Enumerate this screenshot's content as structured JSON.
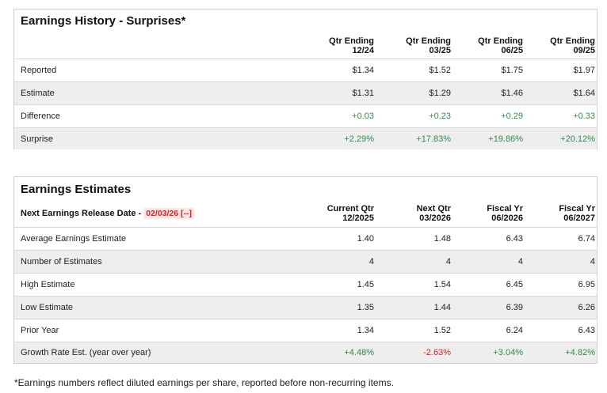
{
  "surprises": {
    "title": "Earnings History - Surprises*",
    "columns": [
      {
        "line1": "Qtr Ending",
        "line2": "12/24"
      },
      {
        "line1": "Qtr Ending",
        "line2": "03/25"
      },
      {
        "line1": "Qtr Ending",
        "line2": "06/25"
      },
      {
        "line1": "Qtr Ending",
        "line2": "09/25"
      }
    ],
    "rows": [
      {
        "label": "Reported",
        "values": [
          "$1.34",
          "$1.52",
          "$1.75",
          "$1.97"
        ],
        "tone": "neutral"
      },
      {
        "label": "Estimate",
        "values": [
          "$1.31",
          "$1.29",
          "$1.46",
          "$1.64"
        ],
        "tone": "neutral"
      },
      {
        "label": "Difference",
        "values": [
          "+0.03",
          "+0.23",
          "+0.29",
          "+0.33"
        ],
        "tone": "positive"
      },
      {
        "label": "Surprise",
        "values": [
          "+2.29%",
          "+17.83%",
          "+19.86%",
          "+20.12%"
        ],
        "tone": "positive"
      }
    ]
  },
  "estimates": {
    "title": "Earnings Estimates",
    "release_label": "Next Earnings Release Date -",
    "release_date": "02/03/26 [--]",
    "columns": [
      {
        "line1": "Current Qtr",
        "line2": "12/2025"
      },
      {
        "line1": "Next Qtr",
        "line2": "03/2026"
      },
      {
        "line1": "Fiscal Yr",
        "line2": "06/2026"
      },
      {
        "line1": "Fiscal Yr",
        "line2": "06/2027"
      }
    ],
    "rows": [
      {
        "label": "Average Earnings Estimate",
        "values": [
          "1.40",
          "1.48",
          "6.43",
          "6.74"
        ]
      },
      {
        "label": "Number of Estimates",
        "values": [
          "4",
          "4",
          "4",
          "4"
        ]
      },
      {
        "label": "High Estimate",
        "values": [
          "1.45",
          "1.54",
          "6.45",
          "6.95"
        ]
      },
      {
        "label": "Low Estimate",
        "values": [
          "1.35",
          "1.44",
          "6.39",
          "6.26"
        ]
      },
      {
        "label": "Prior Year",
        "values": [
          "1.34",
          "1.52",
          "6.24",
          "6.43"
        ]
      },
      {
        "label": "Growth Rate Est. (year over year)",
        "values": [
          "+4.48%",
          "-2.63%",
          "+3.04%",
          "+4.82%"
        ]
      }
    ]
  },
  "footnote": "*Earnings numbers reflect diluted earnings per share, reported before non-recurring items.",
  "colors": {
    "positive": "#2e8b4a",
    "negative": "#d62020",
    "row_shade": "#eeeeee",
    "border": "#cfcfcf"
  }
}
